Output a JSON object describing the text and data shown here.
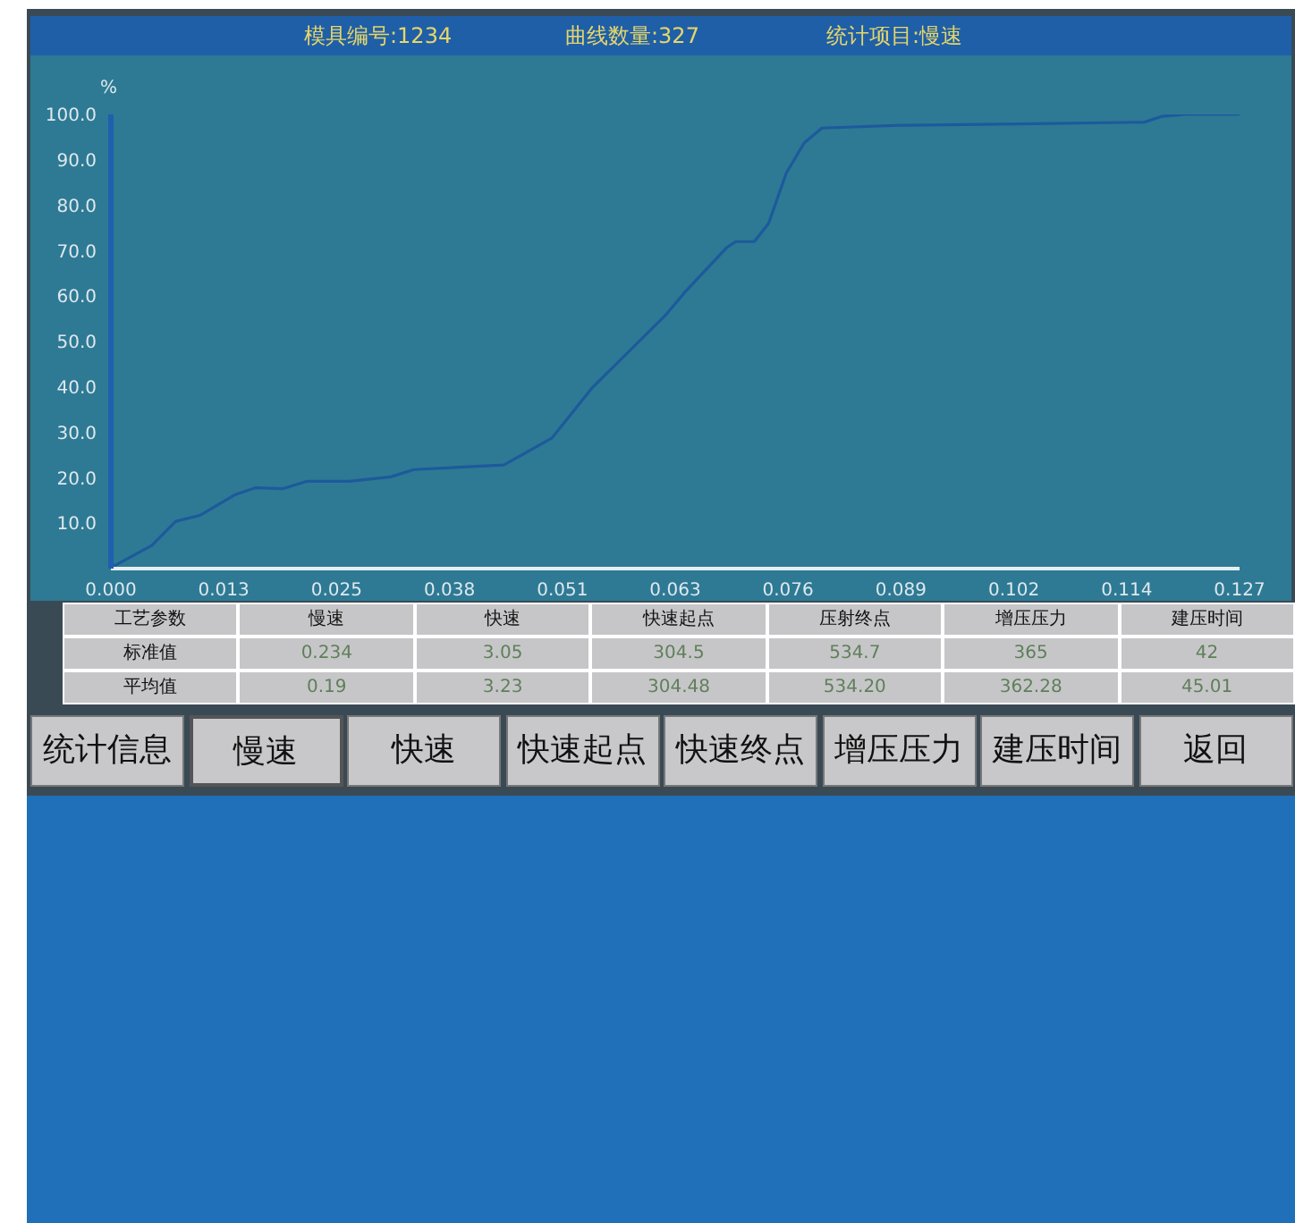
{
  "chart_data": {
    "type": "line",
    "ylabel": "%",
    "x": [
      0,
      0.0003,
      0.0046,
      0.0073,
      0.01,
      0.014,
      0.0163,
      0.0194,
      0.022,
      0.0268,
      0.0315,
      0.0341,
      0.0442,
      0.0496,
      0.0542,
      0.0576,
      0.0625,
      0.0646,
      0.0693,
      0.0703,
      0.0724,
      0.074,
      0.076,
      0.078,
      0.08,
      0.0888,
      0.1022,
      0.1163,
      0.1183,
      0.121,
      0.127
    ],
    "series": [
      {
        "color": "#1d5a9c",
        "values": [
          2,
          0.5,
          5.1,
          10.4,
          11.7,
          16.3,
          17.8,
          17.6,
          19.2,
          19.2,
          20.2,
          21.8,
          22.8,
          28.7,
          39.9,
          46.5,
          56,
          60.9,
          70.7,
          72,
          72,
          76,
          87.1,
          93.7,
          97,
          97.6,
          97.9,
          98.3,
          99.6,
          100,
          100
        ]
      }
    ],
    "xlim": [
      0,
      0.127
    ],
    "xticks": [
      {
        "value": 0,
        "label": "0.000"
      },
      {
        "value": 0.0127,
        "label": "0.013"
      },
      {
        "value": 0.0254,
        "label": "0.025"
      },
      {
        "value": 0.0381,
        "label": "0.038"
      },
      {
        "value": 0.0508,
        "label": "0.051"
      },
      {
        "value": 0.0635,
        "label": "0.063"
      },
      {
        "value": 0.0762,
        "label": "0.076"
      },
      {
        "value": 0.0889,
        "label": "0.089"
      },
      {
        "value": 0.1016,
        "label": "0.102"
      },
      {
        "value": 0.1143,
        "label": "0.114"
      },
      {
        "value": 0.127,
        "label": "0.127"
      }
    ],
    "ylim": [
      0,
      100
    ],
    "yticks": [
      {
        "value": 10,
        "label": "10.0"
      },
      {
        "value": 20,
        "label": "20.0"
      },
      {
        "value": 30,
        "label": "30.0"
      },
      {
        "value": 40,
        "label": "40.0"
      },
      {
        "value": 50,
        "label": "50.0"
      },
      {
        "value": 60,
        "label": "60.0"
      },
      {
        "value": 70,
        "label": "70.0"
      },
      {
        "value": 80,
        "label": "80.0"
      },
      {
        "value": 90,
        "label": "90.0"
      },
      {
        "value": 100,
        "label": "100.0"
      }
    ],
    "grid": false,
    "legend": false,
    "marker": "none",
    "line_style": "solid",
    "annotations": [
      "模具编号:1234",
      "曲线数量:327",
      "统计项目:慢速",
      "工艺参数",
      "慢速",
      "快速",
      "快速起点",
      "压射终点",
      "增压压力",
      "建压时间",
      "标准值",
      "0.234",
      "3.05",
      "304.5",
      "534.7",
      "365",
      "42",
      "平均值",
      "0.19",
      "3.23",
      "304.48",
      "534.20",
      "362.28",
      "45.01",
      "统计信息",
      "慢速",
      "快速",
      "快速起点",
      "快速终点",
      "增压压力",
      "建压时间",
      "返回"
    ]
  }
}
